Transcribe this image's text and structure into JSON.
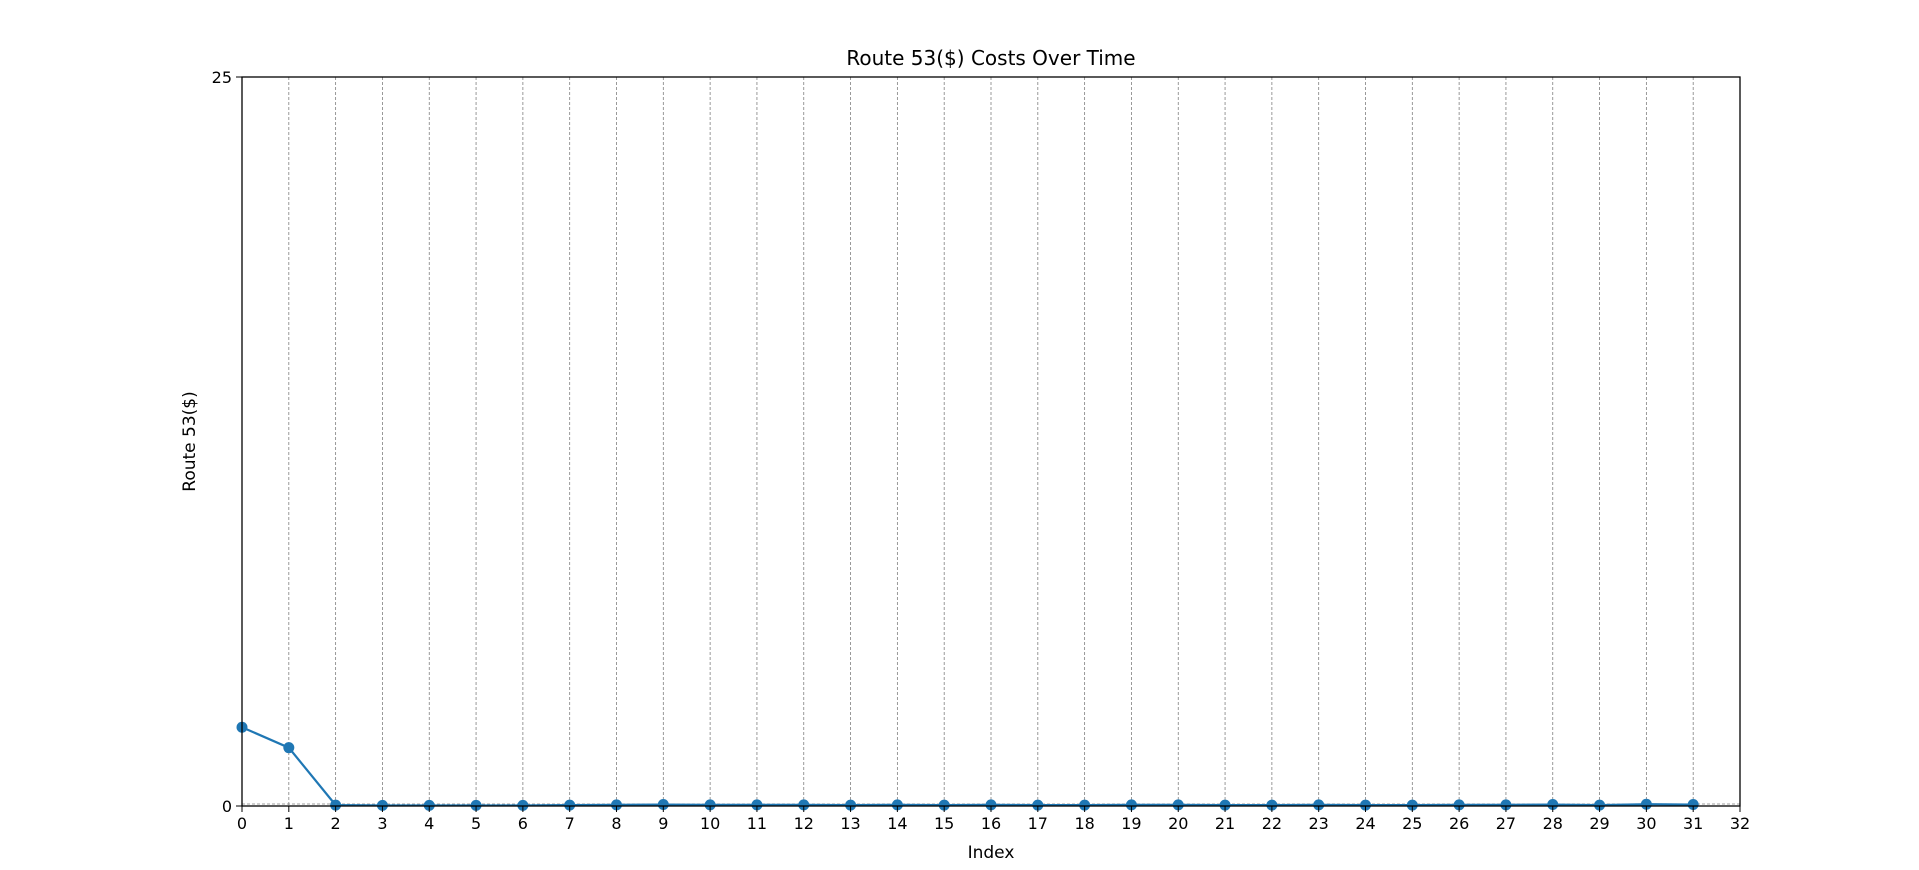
{
  "chart_data": {
    "type": "line",
    "title": "Route 53($) Costs Over Time",
    "xlabel": "Index",
    "ylabel": "Route 53($)",
    "xlim": [
      0,
      32
    ],
    "ylim": [
      0,
      25
    ],
    "x_ticks": [
      "0",
      "1",
      "2",
      "3",
      "4",
      "5",
      "6",
      "7",
      "8",
      "9",
      "10",
      "11",
      "12",
      "13",
      "14",
      "15",
      "16",
      "17",
      "18",
      "19",
      "20",
      "21",
      "22",
      "23",
      "24",
      "25",
      "26",
      "27",
      "28",
      "29",
      "30",
      "31",
      "32"
    ],
    "y_ticks": [
      "0",
      "25"
    ],
    "grid": "vertical dashed",
    "series": [
      {
        "x": [
          0,
          1,
          2,
          3,
          4,
          5,
          6,
          7,
          8,
          9,
          10,
          11,
          12,
          13,
          14,
          15,
          16,
          17,
          18,
          19,
          20,
          21,
          22,
          23,
          24,
          25,
          26,
          27,
          28,
          29,
          30,
          31
        ],
        "values": [
          2.7,
          2.0,
          0.03,
          0.02,
          0.02,
          0.02,
          0.02,
          0.03,
          0.04,
          0.05,
          0.04,
          0.04,
          0.04,
          0.03,
          0.04,
          0.03,
          0.04,
          0.03,
          0.03,
          0.04,
          0.04,
          0.03,
          0.03,
          0.04,
          0.03,
          0.03,
          0.04,
          0.04,
          0.05,
          0.03,
          0.06,
          0.05
        ],
        "color": "#1f77b4"
      }
    ]
  }
}
